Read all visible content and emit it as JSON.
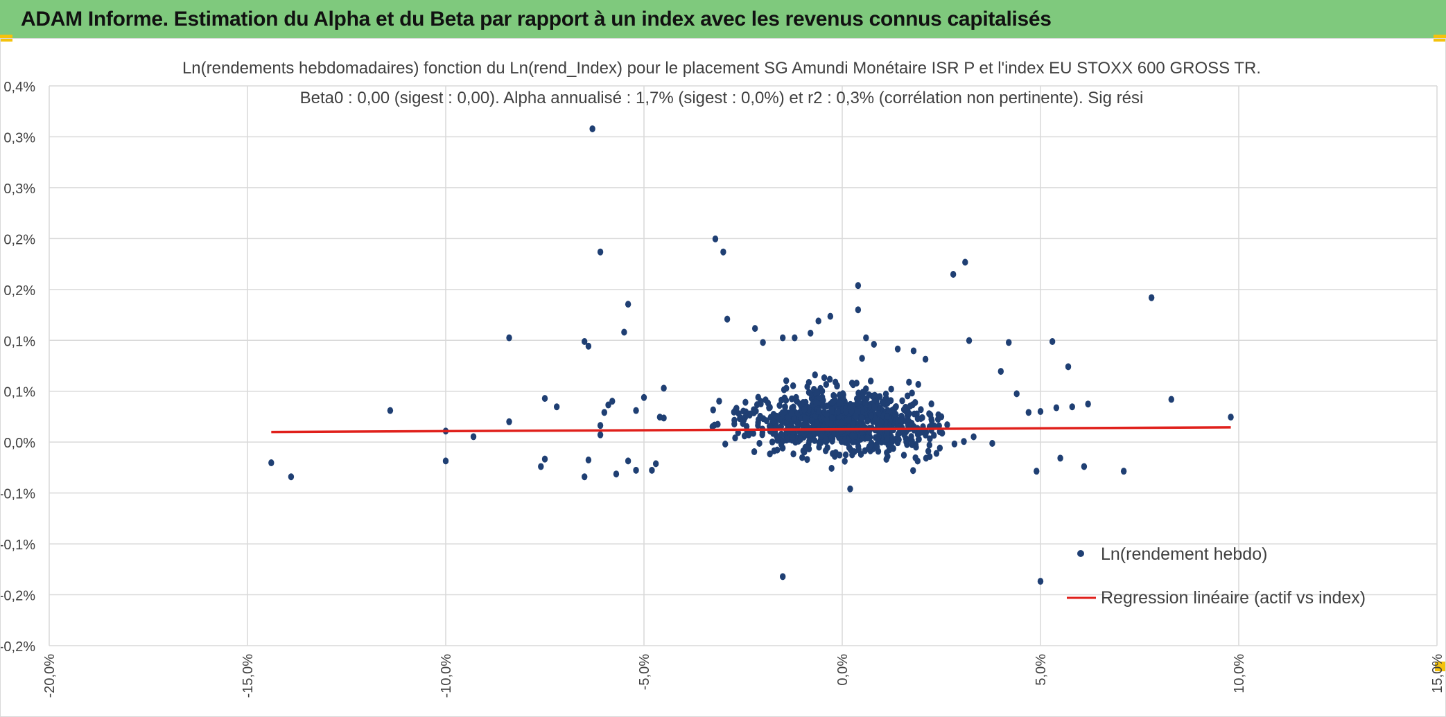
{
  "header": {
    "title": "ADAM Informe. Estimation du Alpha et du Beta par rapport à un index avec les revenus connus capitalisés"
  },
  "colors": {
    "banner": "#7fc97d",
    "accent": "#f4c20d",
    "points": "#1f3f73",
    "regression": "#e0201b",
    "grid": "#d9d9d9"
  },
  "chart_data": {
    "type": "scatter",
    "title": "Ln(rendements hebdomadaires) fonction du Ln(rend_Index) pour le placement SG Amundi Monétaire ISR P et l'index EU STOXX 600 GROSS TR.",
    "subtitle": "Beta0 : 0,00 (sigest : 0,00). Alpha annualisé : 1,7% (sigest : 0,0%) et r2 : 0,3% (corrélation non pertinente). Sig rési",
    "xlabel": "",
    "ylabel": "",
    "xlim": [
      -0.2,
      0.15
    ],
    "ylim": [
      -0.002,
      0.004
    ],
    "grid": true,
    "legend_position": "bottom-right",
    "x_tick_labels": [
      "-20,0%",
      "-15,0%",
      "-10,0%",
      "-5,0%",
      "0,0%",
      "5,0%",
      "10,0%",
      "15,0%"
    ],
    "y_tick_labels": [
      "0,4%",
      "0,3%",
      "0,3%",
      "0,2%",
      "0,2%",
      "0,1%",
      "0,1%",
      "0,0%",
      "-0,1%",
      "-0,1%",
      "-0,2%",
      "-0,2%"
    ],
    "series": [
      {
        "name": "Ln(rendement hebdo)",
        "kind": "scatter",
        "points": [
          [
            -0.144,
            -4e-05
          ],
          [
            -0.139,
            -0.00019
          ],
          [
            -0.114,
            0.00052
          ],
          [
            -0.1,
            -2e-05
          ],
          [
            -0.1,
            0.0003
          ],
          [
            -0.093,
            0.00024
          ],
          [
            -0.084,
            0.0004
          ],
          [
            -0.084,
            0.0013
          ],
          [
            -0.076,
            -8e-05
          ],
          [
            -0.075,
            0.00065
          ],
          [
            -0.075,
            0.0
          ],
          [
            -0.072,
            0.00056
          ],
          [
            -0.065,
            0.00126
          ],
          [
            -0.064,
            0.00121
          ],
          [
            -0.065,
            -0.00019
          ],
          [
            -0.064,
            -1e-05
          ],
          [
            -0.063,
            0.00354
          ],
          [
            -0.061,
            0.00222
          ],
          [
            -0.061,
            0.00036
          ],
          [
            -0.061,
            0.00026
          ],
          [
            -0.06,
            0.0005
          ],
          [
            -0.059,
            0.00058
          ],
          [
            -0.058,
            0.00062
          ],
          [
            -0.057,
            -0.00016
          ],
          [
            -0.055,
            0.00136
          ],
          [
            -0.054,
            0.00166
          ],
          [
            -0.054,
            -2e-05
          ],
          [
            -0.052,
            0.00052
          ],
          [
            -0.052,
            -0.00012
          ],
          [
            -0.05,
            0.00066
          ],
          [
            -0.045,
            0.00076
          ],
          [
            -0.045,
            0.00044
          ],
          [
            -0.046,
            0.00045
          ],
          [
            -0.048,
            -0.00012
          ],
          [
            -0.047,
            -5e-05
          ],
          [
            -0.032,
            0.00236
          ],
          [
            -0.03,
            0.00222
          ],
          [
            -0.029,
            0.0015
          ],
          [
            -0.022,
            0.0014
          ],
          [
            -0.02,
            0.00125
          ],
          [
            -0.015,
            -0.00126
          ],
          [
            -0.015,
            0.0013
          ],
          [
            -0.012,
            0.0013
          ],
          [
            -0.008,
            0.00135
          ],
          [
            -0.006,
            0.00148
          ],
          [
            -0.003,
            0.00153
          ],
          [
            0.004,
            0.0016
          ],
          [
            0.005,
            0.00108
          ],
          [
            0.006,
            0.0013
          ],
          [
            0.008,
            0.00123
          ],
          [
            0.004,
            0.00186
          ],
          [
            0.002,
            -0.00032
          ],
          [
            0.014,
            0.00118
          ],
          [
            0.018,
            0.00116
          ],
          [
            0.021,
            0.00107
          ],
          [
            0.028,
            0.00198
          ],
          [
            0.031,
            0.00211
          ],
          [
            0.032,
            0.00127
          ],
          [
            0.04,
            0.00094
          ],
          [
            0.042,
            0.00125
          ],
          [
            0.044,
            0.0007
          ],
          [
            0.047,
            0.0005
          ],
          [
            0.049,
            -0.00013
          ],
          [
            0.05,
            0.00051
          ],
          [
            0.05,
            -0.00131
          ],
          [
            0.053,
            0.00126
          ],
          [
            0.054,
            0.00055
          ],
          [
            0.055,
            1e-05
          ],
          [
            0.057,
            0.00099
          ],
          [
            0.058,
            0.00056
          ],
          [
            0.061,
            -8e-05
          ],
          [
            0.062,
            0.00059
          ],
          [
            0.071,
            -0.00013
          ],
          [
            0.078,
            0.00173
          ],
          [
            0.083,
            0.00064
          ],
          [
            0.098,
            0.00045
          ]
        ]
      },
      {
        "name": "Regression linéaire (actif vs index)",
        "kind": "line",
        "x": [
          -0.144,
          0.098
        ],
        "y": [
          0.00029,
          0.00034
        ]
      }
    ],
    "cluster_note_hidden": "",
    "cluster": {
      "count": 900,
      "x_mean": 0.0,
      "x_sd": 0.016,
      "y_mean": 0.0004,
      "y_sd": 0.0003,
      "y_min": -0.00028,
      "y_max": 0.00095
    }
  }
}
